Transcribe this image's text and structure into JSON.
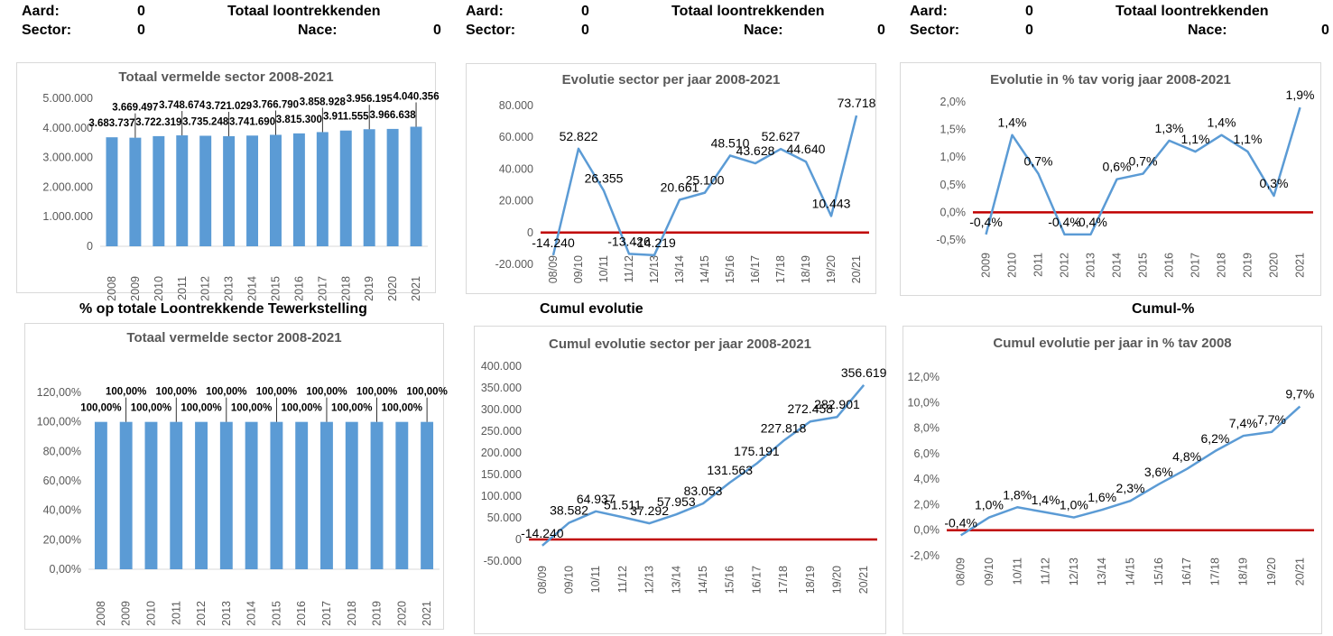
{
  "header_blocks": [
    {
      "aard_label": "Aard:",
      "aard_value": "0",
      "sector_label": "Sector:",
      "sector_value": "0",
      "title": "Totaal loontrekkenden",
      "nace_label": "Nace:",
      "nace_value": "0"
    },
    {
      "aard_label": "Aard:",
      "aard_value": "0",
      "sector_label": "Sector:",
      "sector_value": "0",
      "title": "Totaal loontrekkenden",
      "nace_label": "Nace:",
      "nace_value": "0"
    },
    {
      "aard_label": "Aard:",
      "aard_value": "0",
      "sector_label": "Sector:",
      "sector_value": "0",
      "title": "Totaal loontrekkenden",
      "nace_label": "Nace:",
      "nace_value": "0"
    }
  ],
  "section_titles": {
    "pct": "% op totale Loontrekkende Tewerkstelling",
    "cumul": "Cumul evolutie",
    "cumul_pct": "Cumul-%"
  },
  "colors": {
    "bar": "#5b9bd5",
    "line": "#5b9bd5",
    "zero_line": "#c00000",
    "text": "#595959"
  },
  "chart_data": [
    {
      "id": "c1",
      "type": "bar",
      "title": "Totaal vermelde sector 2008-2021",
      "categories": [
        "2008",
        "2009",
        "2010",
        "2011",
        "2012",
        "2013",
        "2014",
        "2015",
        "2016",
        "2017",
        "2018",
        "2019",
        "2020",
        "2021"
      ],
      "values": [
        3683737,
        3669497,
        3722319,
        3748674,
        3735248,
        3721029,
        3741690,
        3766790,
        3815300,
        3858928,
        3911555,
        3956195,
        3966638,
        4040356
      ],
      "data_labels": [
        "3.683.737",
        "3.669.497",
        "3.722.319",
        "3.748.674",
        "3.735.248",
        "3.721.029",
        "3.741.690",
        "3.766.790",
        "3.815.300",
        "3.858.928",
        "3.911.555",
        "3.956.195",
        "3.966.638",
        "4.040.356"
      ],
      "ylim": [
        0,
        5000000
      ],
      "yticks": [
        "0",
        "1.000.000",
        "2.000.000",
        "3.000.000",
        "4.000.000",
        "5.000.000"
      ],
      "grid": false
    },
    {
      "id": "c2",
      "type": "line",
      "title": "Evolutie sector per jaar 2008-2021",
      "categories": [
        "08/09",
        "09/10",
        "10/11",
        "11/12",
        "12/13",
        "13/14",
        "14/15",
        "15/16",
        "16/17",
        "17/18",
        "18/19",
        "19/20",
        "20/21"
      ],
      "values": [
        -14240,
        52822,
        26355,
        -13426,
        -14219,
        20661,
        25100,
        48510,
        43628,
        52627,
        44640,
        10443,
        73718
      ],
      "data_labels": [
        "-14.240",
        "52.822",
        "26.355",
        "-13.426",
        "-14.219",
        "20.661",
        "25.100",
        "48.510",
        "43.628",
        "52.627",
        "44.640",
        "10.443",
        "73.718"
      ],
      "ylim": [
        -20000,
        80000
      ],
      "yticks": [
        "-20.000",
        "0",
        "20.000",
        "40.000",
        "60.000",
        "80.000"
      ],
      "grid": false
    },
    {
      "id": "c3",
      "type": "line",
      "title": "Evolutie in % tav vorig jaar 2008-2021",
      "categories": [
        "2009",
        "2010",
        "2011",
        "2012",
        "2013",
        "2014",
        "2015",
        "2016",
        "2017",
        "2018",
        "2019",
        "2020",
        "2021"
      ],
      "values": [
        -0.4,
        1.4,
        0.7,
        -0.4,
        -0.4,
        0.6,
        0.7,
        1.3,
        1.1,
        1.4,
        1.1,
        0.3,
        1.9
      ],
      "data_labels": [
        "-0,4%",
        "1,4%",
        "0,7%",
        "-0,4%",
        "-0,4%",
        "0,6%",
        "0,7%",
        "1,3%",
        "1,1%",
        "1,4%",
        "1,1%",
        "0,3%",
        "1,9%"
      ],
      "ylim": [
        -0.5,
        2.0
      ],
      "yticks": [
        "-0,5%",
        "0,0%",
        "0,5%",
        "1,0%",
        "1,5%",
        "2,0%"
      ],
      "grid": false
    },
    {
      "id": "c4",
      "type": "bar",
      "title": "Totaal vermelde sector 2008-2021",
      "categories": [
        "2008",
        "2009",
        "2010",
        "2011",
        "2012",
        "2013",
        "2014",
        "2015",
        "2016",
        "2017",
        "2018",
        "2019",
        "2020",
        "2021"
      ],
      "values": [
        100,
        100,
        100,
        100,
        100,
        100,
        100,
        100,
        100,
        100,
        100,
        100,
        100,
        100
      ],
      "data_labels": [
        "100,00%",
        "100,00%",
        "100,00%",
        "100,00%",
        "100,00%",
        "100,00%",
        "100,00%",
        "100,00%",
        "100,00%",
        "100,00%",
        "100,00%",
        "100,00%",
        "100,00%",
        "100,00%"
      ],
      "ylim": [
        0,
        120
      ],
      "yticks": [
        "0,00%",
        "20,00%",
        "40,00%",
        "60,00%",
        "80,00%",
        "100,00%",
        "120,00%"
      ],
      "grid": false
    },
    {
      "id": "c5",
      "type": "line",
      "title": "Cumul evolutie sector per jaar 2008-2021",
      "categories": [
        "08/09",
        "09/10",
        "10/11",
        "11/12",
        "12/13",
        "13/14",
        "14/15",
        "15/16",
        "16/17",
        "17/18",
        "18/19",
        "19/20",
        "20/21"
      ],
      "values": [
        -14240,
        38582,
        64937,
        51511,
        37292,
        57953,
        83053,
        131563,
        175191,
        227818,
        272458,
        282901,
        356619
      ],
      "data_labels": [
        "-14.240",
        "38.582",
        "64.937",
        "51.511",
        "37.292",
        "57.953",
        "83.053",
        "131.563",
        "175.191",
        "227.818",
        "272.458",
        "282.901",
        "356.619"
      ],
      "ylim": [
        -50000,
        400000
      ],
      "yticks": [
        "-50.000",
        "0",
        "50.000",
        "100.000",
        "150.000",
        "200.000",
        "250.000",
        "300.000",
        "350.000",
        "400.000"
      ],
      "grid": false
    },
    {
      "id": "c6",
      "type": "line",
      "title": "Cumul evolutie per jaar in % tav 2008",
      "categories": [
        "08/09",
        "09/10",
        "10/11",
        "11/12",
        "12/13",
        "13/14",
        "14/15",
        "15/16",
        "16/17",
        "17/18",
        "18/19",
        "19/20",
        "20/21"
      ],
      "values": [
        -0.4,
        1.0,
        1.8,
        1.4,
        1.0,
        1.6,
        2.3,
        3.6,
        4.8,
        6.2,
        7.4,
        7.7,
        9.7
      ],
      "data_labels": [
        "-0,4%",
        "1,0%",
        "1,8%",
        "1,4%",
        "1,0%",
        "1,6%",
        "2,3%",
        "3,6%",
        "4,8%",
        "6,2%",
        "7,4%",
        "7,7%",
        "9,7%"
      ],
      "ylim": [
        -2,
        12
      ],
      "yticks": [
        "-2,0%",
        "0,0%",
        "2,0%",
        "4,0%",
        "6,0%",
        "8,0%",
        "10,0%",
        "12,0%"
      ],
      "grid": false
    }
  ]
}
